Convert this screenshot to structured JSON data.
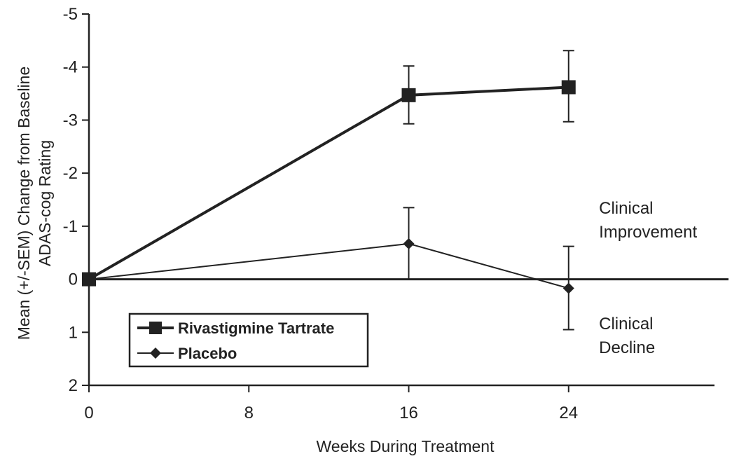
{
  "chart_data": {
    "type": "line",
    "xlabel": "Weeks During Treatment",
    "ylabel_lines": [
      "Mean (+/-SEM) Change from Baseline",
      "ADAS-cog Rating"
    ],
    "xlim": [
      0,
      32
    ],
    "ylim": [
      2,
      -5
    ],
    "x_ticks": [
      0,
      8,
      16,
      24
    ],
    "y_ticks": [
      -5,
      -4,
      -3,
      -2,
      -1,
      0,
      1,
      2
    ],
    "y_tick_labels": [
      "-5",
      "-4",
      "-3",
      "-2",
      "-1",
      "0",
      "1",
      "2"
    ],
    "series": [
      {
        "name": "Rivastigmine Tartrate",
        "marker": "square",
        "line_width": "thick",
        "x": [
          0,
          16,
          24
        ],
        "y": [
          0,
          -3.47,
          -3.62
        ],
        "err_low": [
          null,
          -2.93,
          -2.97
        ],
        "err_high": [
          null,
          -4.02,
          -4.31
        ]
      },
      {
        "name": "Placebo",
        "marker": "diamond",
        "line_width": "thin",
        "x": [
          0,
          16,
          24
        ],
        "y": [
          0,
          -0.67,
          0.17
        ],
        "err_low": [
          null,
          0,
          0.95
        ],
        "err_high": [
          null,
          -1.35,
          -0.62
        ]
      }
    ],
    "reference_line_y": 0,
    "annotations": [
      {
        "lines": [
          "Clinical",
          "Improvement"
        ],
        "x": 28.5,
        "y": -1
      },
      {
        "lines": [
          "Clinical",
          "Decline"
        ],
        "x": 28.5,
        "y": 1
      }
    ],
    "legend": {
      "placement": "bottom-left"
    },
    "grid": false,
    "colors": {
      "ink": "#222222",
      "background": "#ffffff"
    }
  }
}
